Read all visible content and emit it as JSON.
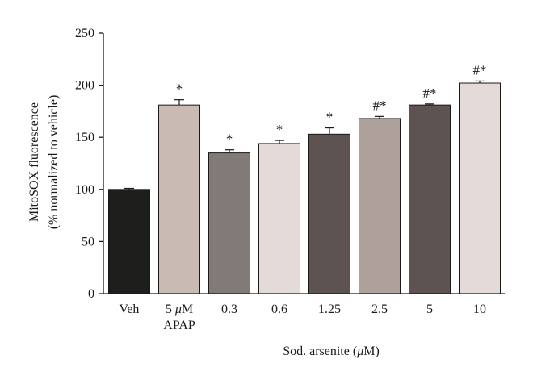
{
  "chart_data": {
    "type": "bar",
    "title": "",
    "ylabel_line1": "MitoSOX fluorescence",
    "ylabel_line2": "(% normalized to vehicle)",
    "xlabel_prefix": "Sod. arsenite (",
    "xlabel_mu": "μ",
    "xlabel_suffix": "M)",
    "ylim": [
      0,
      250
    ],
    "yticks": [
      "0",
      "50",
      "100",
      "150",
      "200",
      "250"
    ],
    "categories": [
      {
        "label": "Veh",
        "label2": ""
      },
      {
        "label": "5 μM",
        "label2": "APAP"
      },
      {
        "label": "0.3",
        "label2": ""
      },
      {
        "label": "0.6",
        "label2": ""
      },
      {
        "label": "1.25",
        "label2": ""
      },
      {
        "label": "2.5",
        "label2": ""
      },
      {
        "label": "5",
        "label2": ""
      },
      {
        "label": "10",
        "label2": ""
      }
    ],
    "values": [
      100,
      181,
      135,
      144,
      153,
      168,
      181,
      202
    ],
    "errors": [
      1,
      5,
      3,
      3,
      6,
      2,
      1,
      2
    ],
    "significance": [
      "",
      "*",
      "*",
      "*",
      "*",
      "#*",
      "#*",
      "#*"
    ],
    "colors": [
      "#1e1e1c",
      "#c9bbb4",
      "#827a76",
      "#e4dbd9",
      "#5d5350",
      "#aea19c",
      "#5d5350",
      "#e4dbd9"
    ],
    "grid": false,
    "legend": "none"
  }
}
